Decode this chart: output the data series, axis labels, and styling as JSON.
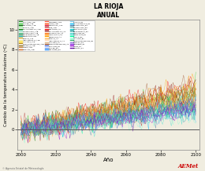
{
  "title": "LA RIOJA",
  "subtitle": "ANUAL",
  "xlabel": "Año",
  "ylabel": "Cambio de la temperatura máxima (ºC)",
  "xlim": [
    1998,
    2102
  ],
  "ylim": [
    -2,
    11
  ],
  "yticks": [
    0,
    2,
    4,
    6,
    8,
    10
  ],
  "xticks": [
    2000,
    2020,
    2040,
    2060,
    2080,
    2100
  ],
  "bg_color": "#f0ede0",
  "plot_bg": "#f0ede0",
  "below_zero_color": "#f0ede0",
  "zero_line_color": "#555555",
  "legend_entries": [
    {
      "label": "GOS-AOM_A1B",
      "color": "#228B22"
    },
    {
      "label": "GOS-ER_A1B",
      "color": "#32CD32"
    },
    {
      "label": "BIM-CMTO_A1B",
      "color": "#006400"
    },
    {
      "label": "ECHO-G_A1B",
      "color": "#90EE90"
    },
    {
      "label": "MRI-CGCMD.3.2_A1B",
      "color": "#008000"
    },
    {
      "label": "CGCM3.V145_A1B",
      "color": "#66CDAA"
    },
    {
      "label": "CGCM3.V150_A1B",
      "color": "#3CB371"
    },
    {
      "label": "BCCR-BCM2.0_A1B",
      "color": "#2E8B57"
    },
    {
      "label": "CNRM-CM3.A1B",
      "color": "#20B2AA"
    },
    {
      "label": "EGMAM_A1B",
      "color": "#DAA520"
    },
    {
      "label": "INGV-SINTEX-G_A1B",
      "color": "#F0E68C"
    },
    {
      "label": "IPS1-CM4_A1B",
      "color": "#FFD700"
    },
    {
      "label": "MPIECHAM5MPI-OM_A1B",
      "color": "#B8860B"
    },
    {
      "label": "CNCM3_0_A1B",
      "color": "#8B6914"
    },
    {
      "label": "GMIFO_A1B",
      "color": "#CD853F"
    },
    {
      "label": "EGMAM2_A1B",
      "color": "#D2691E"
    },
    {
      "label": "HADGEM2_A1B",
      "color": "#FF6347"
    },
    {
      "label": "IPCM4_A1B",
      "color": "#FF4500"
    },
    {
      "label": "MPECHASC_A1B",
      "color": "#DC143C"
    },
    {
      "label": "MGE_A1B",
      "color": "#B22222"
    },
    {
      "label": "BIM-CMTO_A2",
      "color": "#FF0000"
    },
    {
      "label": "MRI-CGCMD.3.2_A2",
      "color": "#8B0000"
    },
    {
      "label": "CGCM3.1(47)_A2",
      "color": "#FF6600"
    },
    {
      "label": "GFDL-CM2.1_A2",
      "color": "#FF8C00"
    },
    {
      "label": "CNRM-CM3_A2",
      "color": "#FFA500"
    },
    {
      "label": "EGMAM_A2",
      "color": "#FFB347"
    },
    {
      "label": "INGV-SINTEX-G_A2",
      "color": "#FFDAB9"
    },
    {
      "label": "IPS1-CM4_A2",
      "color": "#DEB887"
    },
    {
      "label": "MPIECHAM5MPI-OM_A2",
      "color": "#A0522D"
    },
    {
      "label": "GOS-AOM_B1",
      "color": "#4169E1"
    },
    {
      "label": "GOS-ER_B1",
      "color": "#6495ED"
    },
    {
      "label": "BIM-CM3O_B1",
      "color": "#1E90FF"
    },
    {
      "label": "ECHO-G_B1",
      "color": "#87CEEB"
    },
    {
      "label": "MRI-CGCMD.3.2_B1",
      "color": "#00BFFF"
    },
    {
      "label": "CGCM3.V145_B1",
      "color": "#4682B4"
    },
    {
      "label": "CGCM3.V150_B1",
      "color": "#5F9EA0"
    },
    {
      "label": "GFDL-CM2.0_B1",
      "color": "#00CED1"
    },
    {
      "label": "BCCR-BCM2.0_B1",
      "color": "#008B8B"
    },
    {
      "label": "CNM-CM3_B1",
      "color": "#48D1CC"
    },
    {
      "label": "CNRM-CM3_B1",
      "color": "#40E0D0"
    },
    {
      "label": "EGMAM_B1",
      "color": "#00FA9A"
    },
    {
      "label": "IPS1-CM4_B1",
      "color": "#7FFFD4"
    },
    {
      "label": "MPIECHAM5MPI-OM_B1",
      "color": "#3CB371"
    },
    {
      "label": "EGMANC_E1",
      "color": "#9370DB"
    },
    {
      "label": "HADGEM2_E1",
      "color": "#8A2BE2"
    },
    {
      "label": "IPCM4_E1",
      "color": "#9400D3"
    },
    {
      "label": "MPEHOC_E1",
      "color": "#6A0DAD"
    }
  ],
  "seed": 42,
  "n_years": 101,
  "year_start": 2000
}
